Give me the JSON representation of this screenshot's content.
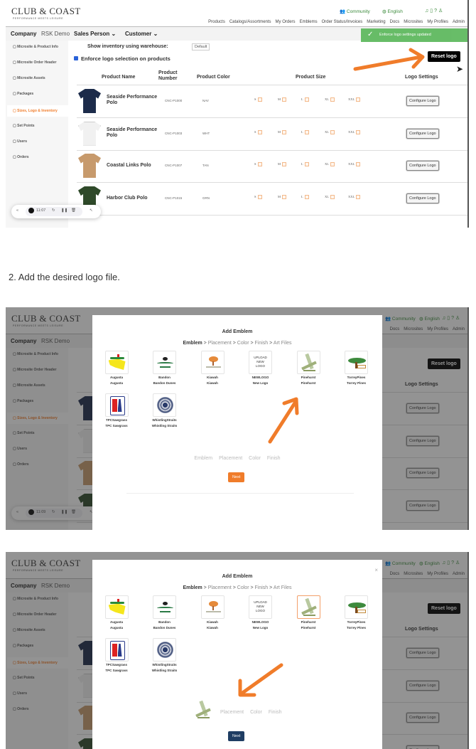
{
  "step_text": "2. Add the desired logo file.",
  "toast": "Enforce logo settings updated",
  "app": {
    "logo": {
      "name": "CLUB & COAST",
      "tagline": "PERFORMANCE MEETS LEISURE"
    },
    "utility": {
      "community": "Community",
      "language": "English"
    },
    "nav": [
      "Products",
      "Catalogs/Assortments",
      "My Orders",
      "Emblems",
      "Order Status/Invoices",
      "Marketing",
      "Docs",
      "Microsites",
      "My Profiles",
      "Admin"
    ],
    "company_label": "Company",
    "company_value": "RSK Demo",
    "sales_person": "Sales Person",
    "customer": "Customer",
    "sidebar": [
      {
        "label": "Microsite & Product Info",
        "icon": "info-icon",
        "active": false
      },
      {
        "label": "Microsite Order Header",
        "icon": "header-icon",
        "active": false
      },
      {
        "label": "Microsite Assets",
        "icon": "assets-icon",
        "active": false
      },
      {
        "label": "Packages",
        "icon": "package-icon",
        "active": false
      },
      {
        "label": "Sizes, Logo & Inventory",
        "icon": "settings-icon",
        "active": true
      },
      {
        "label": "Set Points",
        "icon": "points-icon",
        "active": false
      },
      {
        "label": "Users",
        "icon": "users-icon",
        "active": false
      },
      {
        "label": "Orders",
        "icon": "document-icon",
        "active": false
      }
    ],
    "warehouse_label": "Show inventory using warehouse:",
    "warehouse_value": "Default",
    "enforce_label": "Enforce logo selection on products",
    "enforce_checked": true,
    "reset_label": "Reset logo",
    "table": {
      "headers": {
        "name": "Product Name",
        "number": "Product Number",
        "color": "Product Color",
        "size": "Product Size",
        "logo": "Logo Settings"
      },
      "sizes": [
        "S",
        "M",
        "L",
        "XL",
        "XXL"
      ],
      "configure_label": "Configure Logo",
      "rows": [
        {
          "name": "Seaside Performance Polo",
          "number": "CNC-P1000",
          "color": "NAV",
          "swatch": "#1c2b4a"
        },
        {
          "name": "Seaside Performance Polo",
          "number": "CNC-P1003",
          "color": "WHT",
          "swatch": "#f1f1f1"
        },
        {
          "name": "Coastal Links Polo",
          "number": "CNC-P1007",
          "color": "TAN",
          "swatch": "#c79a6c"
        },
        {
          "name": "Harbor Club Polo",
          "number": "CNC-P1015",
          "color": "GRN",
          "swatch": "#2f4a2a"
        }
      ]
    }
  },
  "modal": {
    "title": "Add Emblem",
    "breadcrumb": [
      "Emblem",
      "Placement",
      "Color",
      "Finish",
      "Art Files"
    ],
    "separator": ">",
    "emblems": [
      {
        "code": "Augusta",
        "name": "Augusta",
        "icon": "augusta"
      },
      {
        "code": "Bandon",
        "name": "Bandon Dunes",
        "icon": "bandon"
      },
      {
        "code": "Kiawah",
        "name": "Kiawah",
        "icon": "kiawah"
      },
      {
        "code": "NEWLOGO",
        "name": "New Logo",
        "icon": "upload",
        "upload_text": "UPLOAD NEW LOGO"
      },
      {
        "code": "Pinehurst",
        "name": "Pinehurst",
        "icon": "pinehurst"
      },
      {
        "code": "TorreyPines",
        "name": "Torrey Pines",
        "icon": "torrey"
      },
      {
        "code": "TPCSawgrass",
        "name": "TPC Sawgrass",
        "icon": "tpc"
      },
      {
        "code": "WhistlingStraits",
        "name": "Whistling Straits",
        "icon": "whistling"
      }
    ],
    "summary_steps": [
      "Emblem",
      "Placement",
      "Color",
      "Finish"
    ],
    "next_label": "Next"
  },
  "shots": [
    {
      "recorder_time": "11:07"
    },
    {
      "recorder_time": "11:09",
      "selected_emblem": null
    },
    {
      "selected_emblem": "Pinehurst"
    }
  ],
  "colors": {
    "accent": "#f07c2a",
    "toast": "#5cb85c",
    "next_default": "#f07c2a",
    "next_selected": "#1f3d63",
    "arrow": "#f07c2a"
  }
}
